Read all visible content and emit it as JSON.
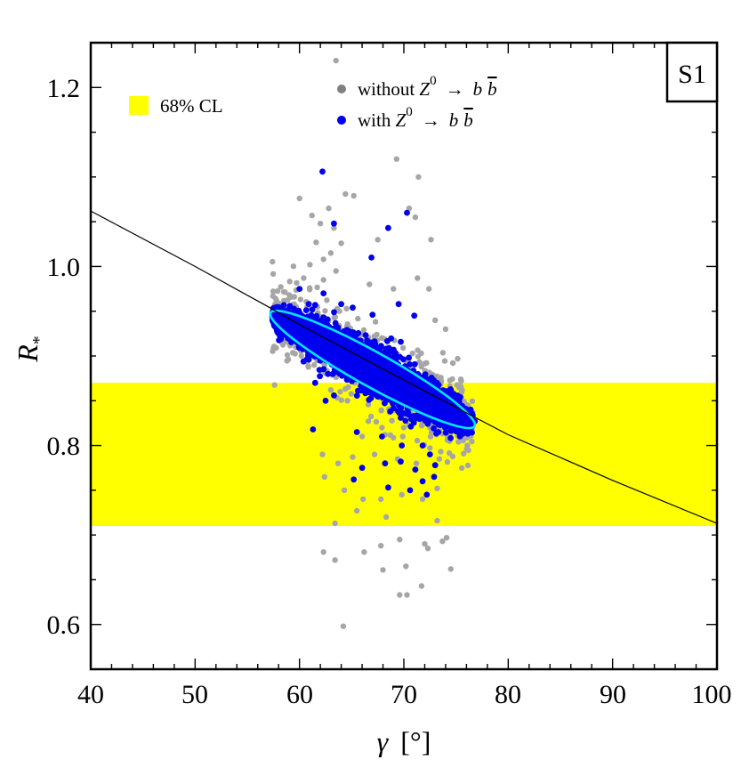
{
  "chart_data": {
    "type": "scatter",
    "panel_label": "S1",
    "xlabel": "γ",
    "xlabel_unit": "[°]",
    "ylabel_main": "R",
    "ylabel_sub": "*",
    "xlim": [
      40,
      100
    ],
    "ylim": [
      0.55,
      1.25
    ],
    "x_ticks": [
      40,
      50,
      60,
      70,
      80,
      90,
      100
    ],
    "x_tick_labels": [
      "40",
      "50",
      "60",
      "70",
      "80",
      "90",
      "100"
    ],
    "y_ticks": [
      0.6,
      0.8,
      1.0,
      1.2
    ],
    "y_tick_labels": [
      "0.6",
      "0.8",
      "1.0",
      "1.2"
    ],
    "band": {
      "label": "68% CL",
      "ymin": 0.71,
      "ymax": 0.87,
      "color": "#ffff00"
    },
    "curve": {
      "color": "#000000",
      "x": [
        40,
        50,
        57,
        60,
        70,
        80,
        90,
        100
      ],
      "y": [
        1.062,
        1.0,
        0.955,
        0.935,
        0.873,
        0.812,
        0.761,
        0.713
      ]
    },
    "ellipse": {
      "color": "#00e5ff",
      "center_x": 67.0,
      "center_y": 0.885,
      "half_length_x": 9.8,
      "slope": -0.0063,
      "half_width_y": 0.022
    },
    "series": [
      {
        "name_prefix": "without ",
        "name_math": "Z",
        "name_sup": "0",
        "name_arrow": "→",
        "name_b": "b",
        "name_bbar": "b",
        "color": "#a6a6a6",
        "legend_color": "#808080"
      },
      {
        "name_prefix": "with ",
        "name_math": "Z",
        "name_sup": "0",
        "name_arrow": "→",
        "name_b": "b",
        "name_bbar": "b",
        "color": "#0000ee",
        "legend_color": "#0000ee"
      }
    ],
    "outliers_gray": [
      [
        63.5,
        1.23
      ],
      [
        69.3,
        1.12
      ],
      [
        71.4,
        1.1
      ],
      [
        60.0,
        1.076
      ],
      [
        62.8,
        1.065
      ],
      [
        64.4,
        1.081
      ],
      [
        65.2,
        1.079
      ],
      [
        61.2,
        1.057
      ],
      [
        70.5,
        1.065
      ],
      [
        71.1,
        1.055
      ],
      [
        62.0,
        1.048
      ],
      [
        63.3,
        1.043
      ],
      [
        67.5,
        1.03
      ],
      [
        72.6,
        1.03
      ],
      [
        61.6,
        1.027
      ],
      [
        64.0,
        1.026
      ],
      [
        63.0,
        1.015
      ],
      [
        62.3,
        1.008
      ],
      [
        61.0,
        1.002
      ],
      [
        63.5,
        0.995
      ],
      [
        60.4,
        0.987
      ],
      [
        62.3,
        0.985
      ],
      [
        66.7,
        0.98
      ],
      [
        69.0,
        0.975
      ],
      [
        71.3,
        0.987
      ],
      [
        72.4,
        0.975
      ],
      [
        73.0,
        0.94
      ],
      [
        74.0,
        0.93
      ],
      [
        61.5,
        0.87
      ],
      [
        63.0,
        0.862
      ],
      [
        64.6,
        0.85
      ],
      [
        66.0,
        0.81
      ],
      [
        68.2,
        0.812
      ],
      [
        70.0,
        0.82
      ],
      [
        72.5,
        0.82
      ],
      [
        62.2,
        0.79
      ],
      [
        63.7,
        0.78
      ],
      [
        65.1,
        0.787
      ],
      [
        67.2,
        0.79
      ],
      [
        69.4,
        0.785
      ],
      [
        71.2,
        0.78
      ],
      [
        73.4,
        0.785
      ],
      [
        62.4,
        0.765
      ],
      [
        64.3,
        0.75
      ],
      [
        66.1,
        0.74
      ],
      [
        67.8,
        0.74
      ],
      [
        69.8,
        0.745
      ],
      [
        71.8,
        0.74
      ],
      [
        73.2,
        0.752
      ],
      [
        65.5,
        0.727
      ],
      [
        68.3,
        0.72
      ],
      [
        73.2,
        0.716
      ],
      [
        63.4,
        0.713
      ],
      [
        66.2,
        0.681
      ],
      [
        67.8,
        0.688
      ],
      [
        69.6,
        0.695
      ],
      [
        72.0,
        0.69
      ],
      [
        73.7,
        0.693
      ],
      [
        74.1,
        0.697
      ],
      [
        62.3,
        0.681
      ],
      [
        63.4,
        0.672
      ],
      [
        68.0,
        0.661
      ],
      [
        70.2,
        0.665
      ],
      [
        72.3,
        0.685
      ],
      [
        74.5,
        0.662
      ],
      [
        69.6,
        0.633
      ],
      [
        70.3,
        0.633
      ],
      [
        71.7,
        0.643
      ],
      [
        64.2,
        0.598
      ],
      [
        61.2,
        0.901
      ],
      [
        61.8,
        0.895
      ],
      [
        74.7,
        0.892
      ],
      [
        75.5,
        0.872
      ],
      [
        73.8,
        0.858
      ],
      [
        65.7,
        0.878
      ],
      [
        67.4,
        0.862
      ],
      [
        63.9,
        0.86
      ],
      [
        74.2,
        0.81
      ],
      [
        75.5,
        0.81
      ],
      [
        73.0,
        0.815
      ],
      [
        66.6,
        0.827
      ],
      [
        67.9,
        0.82
      ],
      [
        69.9,
        0.81
      ]
    ],
    "outliers_blue": [
      [
        62.2,
        1.106
      ],
      [
        70.3,
        1.06
      ],
      [
        63.3,
        1.048
      ],
      [
        68.5,
        1.043
      ],
      [
        66.9,
        1.01
      ],
      [
        60.0,
        0.975
      ],
      [
        62.3,
        0.97
      ],
      [
        61.5,
        0.957
      ],
      [
        64.0,
        0.958
      ],
      [
        65.1,
        0.954
      ],
      [
        67.0,
        0.946
      ],
      [
        69.5,
        0.958
      ],
      [
        71.0,
        0.945
      ],
      [
        61.5,
        0.87
      ],
      [
        63.3,
        0.856
      ],
      [
        65.6,
        0.861
      ],
      [
        68.7,
        0.838
      ],
      [
        71.0,
        0.83
      ],
      [
        62.5,
        0.85
      ],
      [
        61.3,
        0.818
      ],
      [
        65.5,
        0.815
      ],
      [
        67.9,
        0.81
      ],
      [
        69.8,
        0.8
      ],
      [
        71.8,
        0.8
      ],
      [
        72.5,
        0.79
      ],
      [
        73.3,
        0.815
      ],
      [
        68.2,
        0.78
      ],
      [
        69.7,
        0.782
      ],
      [
        71.1,
        0.773
      ],
      [
        73.0,
        0.778
      ],
      [
        68.5,
        0.753
      ],
      [
        70.6,
        0.75
      ],
      [
        71.8,
        0.76
      ],
      [
        72.9,
        0.765
      ],
      [
        76.8,
        0.827
      ],
      [
        76.4,
        0.84
      ],
      [
        64.0,
        0.9
      ],
      [
        66.8,
        0.915
      ],
      [
        70.0,
        0.88
      ],
      [
        73.5,
        0.853
      ],
      [
        60.8,
        0.928
      ],
      [
        72.4,
        0.867
      ],
      [
        70.9,
        0.855
      ],
      [
        67.3,
        0.878
      ],
      [
        65.8,
        0.892
      ],
      [
        66.0,
        0.775
      ],
      [
        65.2,
        0.762
      ],
      [
        72.2,
        0.745
      ]
    ]
  }
}
